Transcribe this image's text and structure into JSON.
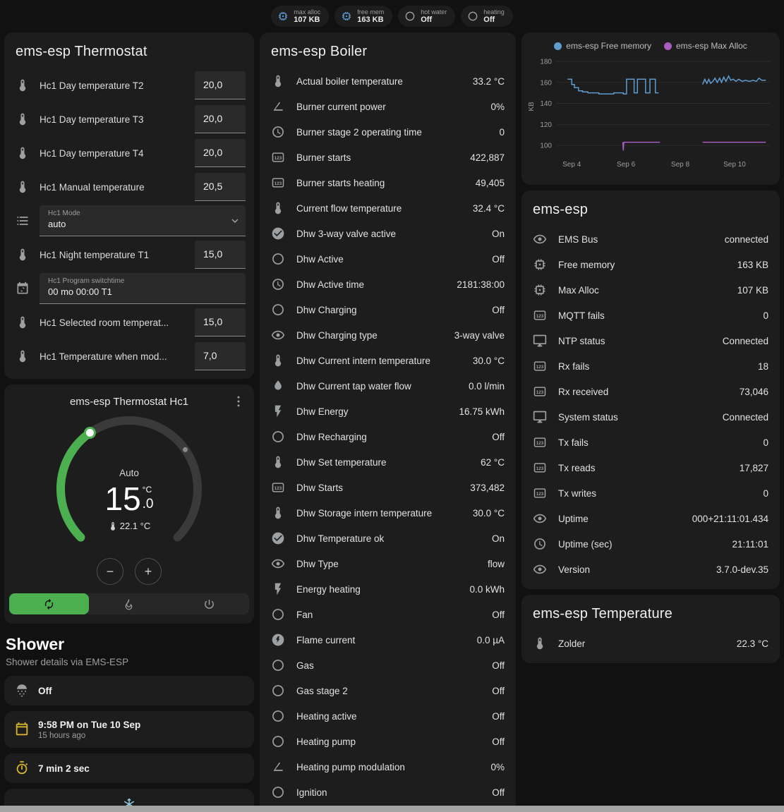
{
  "header": {
    "chips": [
      {
        "label": "max alloc",
        "value": "107 KB",
        "icon": "memory-chip-icon",
        "icon_color": "#5b9bd5"
      },
      {
        "label": "free mem",
        "value": "163 KB",
        "icon": "memory-chip-icon",
        "icon_color": "#5b9bd5"
      },
      {
        "label": "hot water",
        "value": "Off",
        "icon": "circle-outline-icon",
        "icon_color": "#9da0a2"
      },
      {
        "label": "heating",
        "value": "Off",
        "icon": "circle-outline-icon",
        "icon_color": "#9da0a2"
      }
    ]
  },
  "thermostat_card": {
    "title": "ems-esp Thermostat",
    "rows": [
      {
        "type": "number",
        "icon": "thermometer-icon",
        "label": "Hc1 Day temperature T2",
        "value": "20,0"
      },
      {
        "type": "number",
        "icon": "thermometer-icon",
        "label": "Hc1 Day temperature T3",
        "value": "20,0"
      },
      {
        "type": "number",
        "icon": "thermometer-icon",
        "label": "Hc1 Day temperature T4",
        "value": "20,0"
      },
      {
        "type": "number",
        "icon": "thermometer-icon",
        "label": "Hc1 Manual temperature",
        "value": "20,5"
      },
      {
        "type": "select",
        "icon": "list-icon",
        "label": "Hc1 Mode",
        "value": "auto"
      },
      {
        "type": "number",
        "icon": "thermometer-icon",
        "label": "Hc1 Night temperature T1",
        "value": "15,0"
      },
      {
        "type": "field",
        "icon": "calendar-sync-icon",
        "label": "Hc1 Program switchtime",
        "value": "00 mo 00:00 T1"
      },
      {
        "type": "number",
        "icon": "thermometer-icon",
        "label": "Hc1 Selected room temperat...",
        "value": "15,0"
      },
      {
        "type": "number",
        "icon": "thermometer-icon",
        "label": "Hc1 Temperature when mod...",
        "value": "7,0"
      }
    ]
  },
  "dial_card": {
    "title": "ems-esp Thermostat Hc1",
    "mode_label": "Auto",
    "target_temp": "15",
    "target_temp_decimal": ".0",
    "temp_unit": "°C",
    "current_temp": "22.1 °C",
    "decrease_label": "−",
    "increase_label": "+",
    "accent_color": "#4caf50",
    "modes": [
      {
        "name": "auto",
        "icon": "autorenew-icon",
        "active": true
      },
      {
        "name": "heat",
        "icon": "fire-icon",
        "active": false
      },
      {
        "name": "off",
        "icon": "power-icon",
        "active": false
      }
    ]
  },
  "shower_section": {
    "title": "Shower",
    "subtitle": "Shower details via EMS-ESP",
    "rows": [
      {
        "icon": "shower-head-icon",
        "icon_color": "#9da0a2",
        "text": "Off",
        "sub": ""
      },
      {
        "icon": "calendar-icon",
        "icon_color": "#d6b42e",
        "text": "9:58 PM on Tue 10 Sep",
        "sub": "15 hours ago"
      },
      {
        "icon": "timer-icon",
        "icon_color": "#d6b42e",
        "text": "7 min 2 sec",
        "sub": ""
      }
    ],
    "partial_card_icon": "snowflake-icon",
    "partial_icon_color": "#8fc9de"
  },
  "boiler_card": {
    "title": "ems-esp Boiler",
    "rows": [
      {
        "icon": "thermometer-icon",
        "label": "Actual boiler temperature",
        "value": "33.2 °C"
      },
      {
        "icon": "angle-acute-icon",
        "label": "Burner current power",
        "value": "0%"
      },
      {
        "icon": "clock-icon",
        "label": "Burner stage 2 operating time",
        "value": "0"
      },
      {
        "icon": "counter-icon",
        "label": "Burner starts",
        "value": "422,887"
      },
      {
        "icon": "counter-icon",
        "label": "Burner starts heating",
        "value": "49,405"
      },
      {
        "icon": "thermometer-icon",
        "label": "Current flow temperature",
        "value": "32.4 °C"
      },
      {
        "icon": "check-circle-icon",
        "label": "Dhw 3-way valve active",
        "value": "On"
      },
      {
        "icon": "circle-outline-icon",
        "label": "Dhw Active",
        "value": "Off"
      },
      {
        "icon": "clock-icon",
        "label": "Dhw Active time",
        "value": "2181:38:00"
      },
      {
        "icon": "circle-outline-icon",
        "label": "Dhw Charging",
        "value": "Off"
      },
      {
        "icon": "eye-icon",
        "label": "Dhw Charging type",
        "value": "3-way valve"
      },
      {
        "icon": "thermometer-icon",
        "label": "Dhw Current intern temperature",
        "value": "30.0 °C"
      },
      {
        "icon": "water-pump-icon",
        "label": "Dhw Current tap water flow",
        "value": "0.0 l/min"
      },
      {
        "icon": "flash-icon",
        "label": "Dhw Energy",
        "value": "16.75 kWh"
      },
      {
        "icon": "circle-outline-icon",
        "label": "Dhw Recharging",
        "value": "Off"
      },
      {
        "icon": "thermometer-icon",
        "label": "Dhw Set temperature",
        "value": "62 °C"
      },
      {
        "icon": "counter-icon",
        "label": "Dhw Starts",
        "value": "373,482"
      },
      {
        "icon": "thermometer-icon",
        "label": "Dhw Storage intern temperature",
        "value": "30.0 °C"
      },
      {
        "icon": "check-circle-icon",
        "label": "Dhw Temperature ok",
        "value": "On"
      },
      {
        "icon": "eye-icon",
        "label": "Dhw Type",
        "value": "flow"
      },
      {
        "icon": "flash-icon",
        "label": "Energy heating",
        "value": "0.0 kWh"
      },
      {
        "icon": "circle-outline-icon",
        "label": "Fan",
        "value": "Off"
      },
      {
        "icon": "flash-circle-icon",
        "label": "Flame current",
        "value": "0.0 µA"
      },
      {
        "icon": "circle-outline-icon",
        "label": "Gas",
        "value": "Off"
      },
      {
        "icon": "circle-outline-icon",
        "label": "Gas stage 2",
        "value": "Off"
      },
      {
        "icon": "circle-outline-icon",
        "label": "Heating active",
        "value": "Off"
      },
      {
        "icon": "circle-outline-icon",
        "label": "Heating pump",
        "value": "Off"
      },
      {
        "icon": "angle-acute-icon",
        "label": "Heating pump modulation",
        "value": "0%"
      },
      {
        "icon": "circle-outline-icon",
        "label": "Ignition",
        "value": "Off"
      }
    ]
  },
  "chart_data": {
    "type": "line",
    "title": "",
    "ylabel": "KB",
    "ylim": [
      92,
      182
    ],
    "yticks": [
      100,
      120,
      140,
      160,
      180
    ],
    "xlim": [
      3.45,
      11.3
    ],
    "xticks": [
      {
        "x": 4,
        "label": "Sep 4"
      },
      {
        "x": 6,
        "label": "Sep 6"
      },
      {
        "x": 8,
        "label": "Sep 8"
      },
      {
        "x": 10,
        "label": "Sep 10"
      }
    ],
    "grid": true,
    "legend_position": "top",
    "series": [
      {
        "name": "ems-esp Free memory",
        "color": "#5e9cd0",
        "points": [
          [
            3.85,
            163
          ],
          [
            4.0,
            163
          ],
          [
            4.0,
            158
          ],
          [
            4.1,
            158
          ],
          [
            4.1,
            155
          ],
          [
            4.25,
            155
          ],
          [
            4.25,
            152
          ],
          [
            4.4,
            152
          ],
          [
            4.4,
            151
          ],
          [
            4.6,
            151
          ],
          [
            4.6,
            150
          ],
          [
            5.0,
            150
          ],
          [
            5.0,
            149
          ],
          [
            5.55,
            149
          ],
          [
            5.55,
            150
          ],
          [
            5.9,
            150
          ],
          [
            5.9,
            149
          ],
          [
            6.02,
            149
          ],
          [
            6.02,
            163
          ],
          [
            6.3,
            163
          ],
          [
            6.3,
            150
          ],
          [
            6.42,
            150
          ],
          [
            6.42,
            163
          ],
          [
            6.72,
            163
          ],
          [
            6.72,
            150
          ],
          [
            6.88,
            150
          ],
          [
            6.88,
            163
          ],
          [
            7.08,
            163
          ],
          [
            7.08,
            150
          ],
          [
            7.2,
            150
          ],
          null,
          [
            8.82,
            158
          ],
          [
            8.9,
            163
          ],
          [
            8.98,
            159
          ],
          [
            9.05,
            163
          ],
          [
            9.12,
            159
          ],
          [
            9.2,
            161
          ],
          [
            9.28,
            164
          ],
          [
            9.36,
            160
          ],
          [
            9.45,
            164
          ],
          [
            9.52,
            160
          ],
          [
            9.6,
            165
          ],
          [
            9.68,
            161
          ],
          [
            9.78,
            166
          ],
          [
            9.86,
            162
          ],
          [
            9.95,
            163
          ],
          [
            10.05,
            161
          ],
          [
            10.15,
            163
          ],
          [
            10.28,
            161
          ],
          [
            10.4,
            162
          ],
          [
            10.55,
            161
          ],
          [
            10.68,
            162
          ],
          [
            10.8,
            161
          ],
          [
            10.9,
            164
          ],
          [
            11.0,
            162
          ],
          [
            11.15,
            162
          ]
        ]
      },
      {
        "name": "ems-esp Max Alloc",
        "color": "#a85cc0",
        "points": [
          [
            5.88,
            103
          ],
          [
            5.9,
            95
          ],
          [
            5.92,
            103
          ],
          [
            6.6,
            103
          ],
          [
            7.25,
            103
          ],
          null,
          [
            8.82,
            103
          ],
          [
            9.5,
            103
          ],
          [
            10.5,
            103
          ],
          [
            11.15,
            103
          ]
        ]
      }
    ]
  },
  "emsesp_card": {
    "title": "ems-esp",
    "rows": [
      {
        "icon": "eye-icon",
        "label": "EMS Bus",
        "value": "connected"
      },
      {
        "icon": "memory-chip-icon",
        "label": "Free memory",
        "value": "163 KB"
      },
      {
        "icon": "memory-chip-icon",
        "label": "Max Alloc",
        "value": "107 KB"
      },
      {
        "icon": "counter-icon",
        "label": "MQTT fails",
        "value": "0"
      },
      {
        "icon": "monitor-icon",
        "label": "NTP status",
        "value": "Connected"
      },
      {
        "icon": "counter-icon",
        "label": "Rx fails",
        "value": "18"
      },
      {
        "icon": "counter-icon",
        "label": "Rx received",
        "value": "73,046"
      },
      {
        "icon": "monitor-icon",
        "label": "System status",
        "value": "Connected"
      },
      {
        "icon": "counter-icon",
        "label": "Tx fails",
        "value": "0"
      },
      {
        "icon": "counter-icon",
        "label": "Tx reads",
        "value": "17,827"
      },
      {
        "icon": "counter-icon",
        "label": "Tx writes",
        "value": "0"
      },
      {
        "icon": "eye-icon",
        "label": "Uptime",
        "value": "000+21:11:01.434"
      },
      {
        "icon": "clock-icon",
        "label": "Uptime (sec)",
        "value": "21:11:01"
      },
      {
        "icon": "eye-icon",
        "label": "Version",
        "value": "3.7.0-dev.35"
      }
    ]
  },
  "temperature_card": {
    "title": "ems-esp Temperature",
    "rows": [
      {
        "icon": "thermometer-icon",
        "label": "Zolder",
        "value": "22.3 °C"
      }
    ]
  },
  "colors": {
    "page_bg": "#111111",
    "card_bg": "#1d1d1d",
    "accent_green": "#4caf50",
    "icon_gray": "#9da0a2",
    "icon_blue": "#5b9bd5",
    "icon_amber": "#d6b42e",
    "chart_blue": "#5e9cd0",
    "chart_purple": "#a85cc0"
  }
}
